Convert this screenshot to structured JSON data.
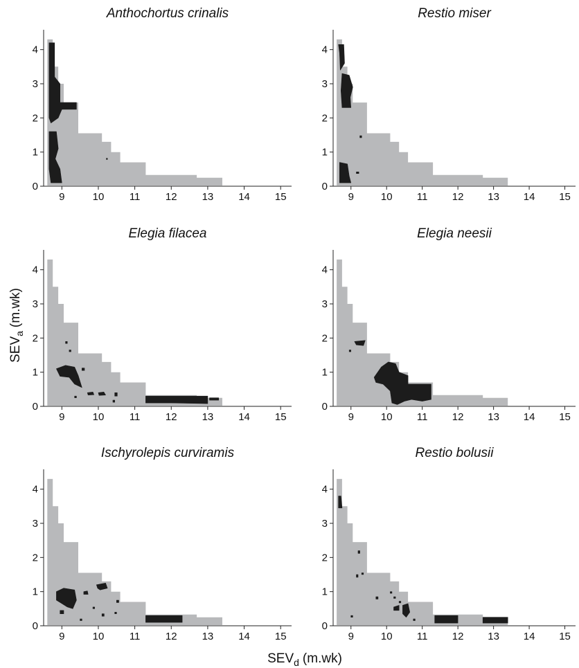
{
  "colors": {
    "envelope": "#b8b9bb",
    "presence": "#1c1c1c",
    "axis": "#222222"
  },
  "chart_data": {
    "type": "area",
    "xlabel": "SEV",
    "xlabel_sub": "d",
    "xlabel_unit": "(m.wk)",
    "ylabel": "SEV",
    "ylabel_sub": "a",
    "ylabel_unit": "(m.wk)",
    "xlim": [
      8.5,
      15.3
    ],
    "ylim": [
      0,
      4.5
    ],
    "xticks": [
      9,
      10,
      11,
      12,
      13,
      14,
      15
    ],
    "yticks": [
      0,
      1,
      2,
      3,
      4
    ],
    "envelope": [
      [
        8.6,
        0.02
      ],
      [
        8.6,
        4.3
      ],
      [
        8.75,
        4.3
      ],
      [
        8.75,
        3.5
      ],
      [
        8.9,
        3.5
      ],
      [
        8.9,
        3.0
      ],
      [
        9.05,
        3.0
      ],
      [
        9.05,
        2.45
      ],
      [
        9.45,
        2.45
      ],
      [
        9.45,
        1.55
      ],
      [
        10.1,
        1.55
      ],
      [
        10.1,
        1.3
      ],
      [
        10.35,
        1.3
      ],
      [
        10.35,
        1.0
      ],
      [
        10.6,
        1.0
      ],
      [
        10.6,
        0.7
      ],
      [
        11.3,
        0.7
      ],
      [
        11.3,
        0.33
      ],
      [
        12.7,
        0.33
      ],
      [
        12.7,
        0.25
      ],
      [
        13.4,
        0.25
      ],
      [
        13.4,
        0.02
      ]
    ],
    "panels": [
      {
        "title": "Anthochortus crinalis",
        "presence": [
          [
            [
              8.65,
              4.2
            ],
            [
              8.8,
              4.2
            ],
            [
              8.8,
              3.2
            ],
            [
              8.95,
              3.0
            ],
            [
              8.95,
              2.45
            ],
            [
              9.4,
              2.45
            ],
            [
              9.4,
              2.25
            ],
            [
              9.0,
              2.25
            ],
            [
              8.9,
              2.0
            ],
            [
              8.7,
              1.85
            ],
            [
              8.65,
              2.0
            ]
          ],
          [
            [
              8.65,
              1.6
            ],
            [
              8.85,
              1.6
            ],
            [
              8.9,
              1.1
            ],
            [
              8.82,
              0.8
            ],
            [
              8.95,
              0.5
            ],
            [
              9.0,
              0.1
            ],
            [
              8.7,
              0.1
            ],
            [
              8.65,
              0.5
            ]
          ],
          [
            [
              10.22,
              0.78
            ],
            [
              10.25,
              0.78
            ],
            [
              10.25,
              0.82
            ],
            [
              10.22,
              0.82
            ]
          ]
        ]
      },
      {
        "title": "Restio miser",
        "presence": [
          [
            [
              8.65,
              4.15
            ],
            [
              8.8,
              4.15
            ],
            [
              8.82,
              3.6
            ],
            [
              8.7,
              3.4
            ],
            [
              8.68,
              3.9
            ]
          ],
          [
            [
              8.75,
              3.3
            ],
            [
              8.95,
              3.25
            ],
            [
              9.05,
              2.9
            ],
            [
              8.98,
              2.6
            ],
            [
              9.0,
              2.3
            ],
            [
              8.75,
              2.3
            ],
            [
              8.72,
              2.8
            ]
          ],
          [
            [
              8.68,
              0.7
            ],
            [
              8.9,
              0.65
            ],
            [
              8.95,
              0.3
            ],
            [
              9.0,
              0.1
            ],
            [
              8.68,
              0.1
            ]
          ],
          [
            [
              9.25,
              1.48
            ],
            [
              9.3,
              1.48
            ],
            [
              9.3,
              1.42
            ],
            [
              9.25,
              1.42
            ]
          ],
          [
            [
              9.15,
              0.42
            ],
            [
              9.22,
              0.42
            ],
            [
              9.22,
              0.37
            ],
            [
              9.15,
              0.37
            ]
          ]
        ]
      },
      {
        "title": "Elegia filacea",
        "presence": [
          [
            [
              8.85,
              1.1
            ],
            [
              9.1,
              1.2
            ],
            [
              9.35,
              1.15
            ],
            [
              9.45,
              0.9
            ],
            [
              9.55,
              0.55
            ],
            [
              9.35,
              0.65
            ],
            [
              9.2,
              0.85
            ],
            [
              8.95,
              0.88
            ]
          ],
          [
            [
              10.0,
              0.4
            ],
            [
              10.15,
              0.42
            ],
            [
              10.2,
              0.33
            ],
            [
              10.02,
              0.32
            ]
          ],
          [
            [
              11.3,
              0.3
            ],
            [
              13.0,
              0.3
            ],
            [
              13.0,
              0.08
            ],
            [
              12.0,
              0.1
            ],
            [
              11.3,
              0.1
            ]
          ],
          [
            [
              13.05,
              0.25
            ],
            [
              13.3,
              0.25
            ],
            [
              13.3,
              0.18
            ],
            [
              13.05,
              0.18
            ]
          ],
          [
            [
              9.7,
              0.4
            ],
            [
              9.85,
              0.42
            ],
            [
              9.88,
              0.34
            ],
            [
              9.72,
              0.33
            ]
          ],
          [
            [
              9.1,
              1.9
            ],
            [
              9.15,
              1.9
            ],
            [
              9.15,
              1.84
            ],
            [
              9.1,
              1.84
            ]
          ],
          [
            [
              9.2,
              1.65
            ],
            [
              9.25,
              1.65
            ],
            [
              9.25,
              1.6
            ],
            [
              9.2,
              1.6
            ]
          ],
          [
            [
              9.55,
              1.12
            ],
            [
              9.62,
              1.12
            ],
            [
              9.62,
              1.05
            ],
            [
              9.55,
              1.05
            ]
          ],
          [
            [
              10.45,
              0.4
            ],
            [
              10.52,
              0.4
            ],
            [
              10.52,
              0.3
            ],
            [
              10.45,
              0.3
            ]
          ],
          [
            [
              9.35,
              0.3
            ],
            [
              9.4,
              0.3
            ],
            [
              9.4,
              0.25
            ],
            [
              9.35,
              0.25
            ]
          ],
          [
            [
              10.4,
              0.18
            ],
            [
              10.45,
              0.18
            ],
            [
              10.45,
              0.12
            ],
            [
              10.4,
              0.12
            ]
          ]
        ]
      },
      {
        "title": "Elegia neesii",
        "presence": [
          [
            [
              9.65,
              0.85
            ],
            [
              9.85,
              1.15
            ],
            [
              10.05,
              1.3
            ],
            [
              10.25,
              1.25
            ],
            [
              10.35,
              1.0
            ],
            [
              10.6,
              0.9
            ],
            [
              10.6,
              0.65
            ],
            [
              11.25,
              0.65
            ],
            [
              11.25,
              0.2
            ],
            [
              11.0,
              0.15
            ],
            [
              10.7,
              0.2
            ],
            [
              10.5,
              0.15
            ],
            [
              10.3,
              0.05
            ],
            [
              10.15,
              0.1
            ],
            [
              10.1,
              0.45
            ],
            [
              9.9,
              0.65
            ],
            [
              9.7,
              0.7
            ]
          ],
          [
            [
              9.1,
              1.9
            ],
            [
              9.4,
              1.93
            ],
            [
              9.35,
              1.78
            ],
            [
              9.15,
              1.8
            ]
          ],
          [
            [
              8.95,
              1.65
            ],
            [
              9.0,
              1.65
            ],
            [
              9.0,
              1.6
            ],
            [
              8.95,
              1.6
            ]
          ]
        ]
      },
      {
        "title": "Ischyrolepis curviramis",
        "presence": [
          [
            [
              8.85,
              1.0
            ],
            [
              9.05,
              1.1
            ],
            [
              9.35,
              1.05
            ],
            [
              9.4,
              0.75
            ],
            [
              9.3,
              0.5
            ],
            [
              9.15,
              0.55
            ],
            [
              9.0,
              0.65
            ],
            [
              8.85,
              0.75
            ]
          ],
          [
            [
              11.3,
              0.3
            ],
            [
              12.3,
              0.3
            ],
            [
              12.3,
              0.1
            ],
            [
              11.3,
              0.1
            ]
          ],
          [
            [
              9.95,
              1.2
            ],
            [
              10.2,
              1.25
            ],
            [
              10.25,
              1.1
            ],
            [
              10.05,
              1.05
            ],
            [
              9.98,
              1.1
            ]
          ],
          [
            [
              9.6,
              1.0
            ],
            [
              9.7,
              1.02
            ],
            [
              9.72,
              0.92
            ],
            [
              9.6,
              0.92
            ]
          ],
          [
            [
              8.95,
              0.45
            ],
            [
              9.05,
              0.45
            ],
            [
              9.05,
              0.35
            ],
            [
              8.95,
              0.35
            ]
          ],
          [
            [
              10.5,
              0.75
            ],
            [
              10.56,
              0.75
            ],
            [
              10.56,
              0.68
            ],
            [
              10.5,
              0.68
            ]
          ],
          [
            [
              9.85,
              0.55
            ],
            [
              9.9,
              0.55
            ],
            [
              9.9,
              0.5
            ],
            [
              9.85,
              0.5
            ]
          ],
          [
            [
              10.1,
              0.35
            ],
            [
              10.16,
              0.35
            ],
            [
              10.16,
              0.28
            ],
            [
              10.1,
              0.28
            ]
          ],
          [
            [
              9.5,
              0.2
            ],
            [
              9.55,
              0.2
            ],
            [
              9.55,
              0.15
            ],
            [
              9.5,
              0.15
            ]
          ],
          [
            [
              10.45,
              0.4
            ],
            [
              10.5,
              0.4
            ],
            [
              10.5,
              0.35
            ],
            [
              10.45,
              0.35
            ]
          ]
        ]
      },
      {
        "title": "Restio bolusii",
        "presence": [
          [
            [
              8.65,
              3.8
            ],
            [
              8.72,
              3.8
            ],
            [
              8.75,
              3.45
            ],
            [
              8.65,
              3.45
            ]
          ],
          [
            [
              11.35,
              0.3
            ],
            [
              12.0,
              0.3
            ],
            [
              12.0,
              0.08
            ],
            [
              11.35,
              0.08
            ]
          ],
          [
            [
              12.7,
              0.25
            ],
            [
              13.4,
              0.25
            ],
            [
              13.4,
              0.08
            ],
            [
              12.7,
              0.08
            ]
          ],
          [
            [
              10.45,
              0.6
            ],
            [
              10.6,
              0.65
            ],
            [
              10.65,
              0.4
            ],
            [
              10.55,
              0.25
            ],
            [
              10.45,
              0.35
            ]
          ],
          [
            [
              10.2,
              0.55
            ],
            [
              10.35,
              0.6
            ],
            [
              10.35,
              0.45
            ],
            [
              10.2,
              0.45
            ]
          ],
          [
            [
              9.2,
              2.2
            ],
            [
              9.25,
              2.2
            ],
            [
              9.25,
              2.12
            ],
            [
              9.2,
              2.12
            ]
          ],
          [
            [
              9.15,
              1.5
            ],
            [
              9.2,
              1.5
            ],
            [
              9.2,
              1.42
            ],
            [
              9.15,
              1.42
            ]
          ],
          [
            [
              9.3,
              1.55
            ],
            [
              9.35,
              1.55
            ],
            [
              9.35,
              1.5
            ],
            [
              9.3,
              1.5
            ]
          ],
          [
            [
              9.7,
              0.85
            ],
            [
              9.76,
              0.85
            ],
            [
              9.76,
              0.78
            ],
            [
              9.7,
              0.78
            ]
          ],
          [
            [
              10.1,
              1.0
            ],
            [
              10.15,
              1.0
            ],
            [
              10.15,
              0.95
            ],
            [
              10.1,
              0.95
            ]
          ],
          [
            [
              10.2,
              0.85
            ],
            [
              10.25,
              0.85
            ],
            [
              10.25,
              0.8
            ],
            [
              10.2,
              0.8
            ]
          ],
          [
            [
              10.35,
              0.72
            ],
            [
              10.4,
              0.72
            ],
            [
              10.4,
              0.67
            ],
            [
              10.35,
              0.67
            ]
          ],
          [
            [
              9.0,
              0.3
            ],
            [
              9.05,
              0.3
            ],
            [
              9.05,
              0.25
            ],
            [
              9.0,
              0.25
            ]
          ],
          [
            [
              10.75,
              0.2
            ],
            [
              10.8,
              0.2
            ],
            [
              10.8,
              0.15
            ],
            [
              10.75,
              0.15
            ]
          ]
        ]
      }
    ]
  }
}
